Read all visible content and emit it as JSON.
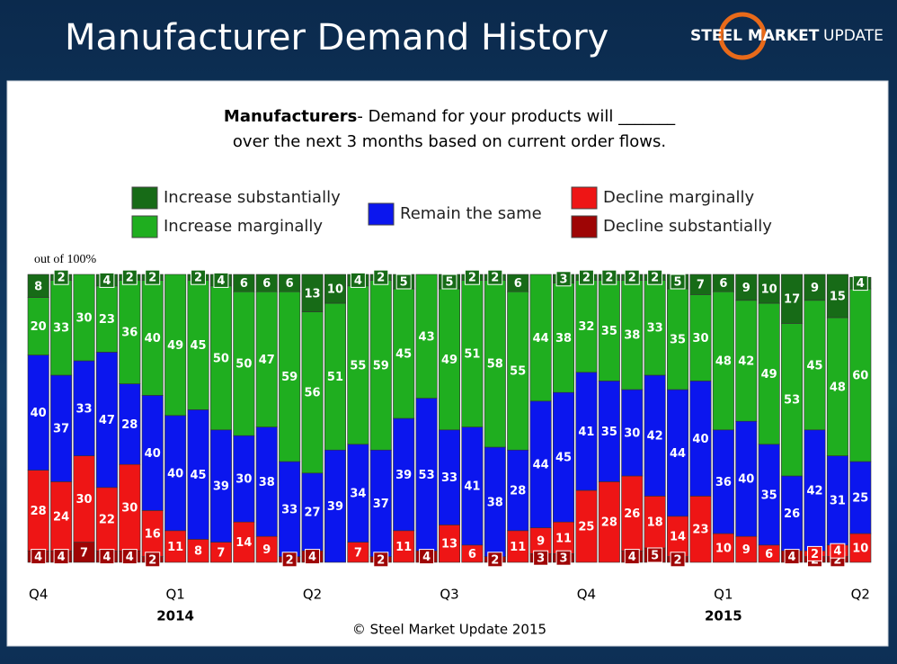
{
  "header": {
    "title": "Manufacturer Demand History",
    "logo_bold": "STEEL MARKET",
    "logo_light": "UPDATE"
  },
  "chart_data": {
    "type": "stacked-bar",
    "title_bold": "Manufacturers",
    "title_rest": "- Demand for your products will _______",
    "title_line2": "over the next 3 months based on current order flows.",
    "y_note": "out of 100%",
    "footer": "© Steel Market Update 2015",
    "ylim": [
      0,
      100
    ],
    "categories": [
      "Q4",
      null,
      null,
      null,
      null,
      null,
      "Q1",
      null,
      null,
      null,
      null,
      null,
      "Q2",
      null,
      null,
      null,
      null,
      null,
      "Q3",
      null,
      null,
      null,
      null,
      null,
      "Q4",
      null,
      null,
      null,
      null,
      null,
      "Q1",
      null,
      null,
      null,
      null,
      null,
      "Q2"
    ],
    "year_categories": [
      null,
      null,
      null,
      null,
      null,
      null,
      "2014",
      null,
      null,
      null,
      null,
      null,
      null,
      null,
      null,
      null,
      null,
      null,
      null,
      null,
      null,
      null,
      null,
      null,
      null,
      null,
      null,
      null,
      null,
      null,
      "2015",
      null,
      null,
      null,
      null,
      null,
      null
    ],
    "series": [
      {
        "name": "Increase substantially",
        "color": "#176b17",
        "values": [
          8,
          2,
          0,
          4,
          2,
          2,
          0,
          2,
          4,
          6,
          6,
          6,
          13,
          10,
          4,
          2,
          5,
          0,
          5,
          2,
          2,
          6,
          0,
          3,
          2,
          2,
          2,
          2,
          5,
          7,
          6,
          9,
          10,
          17,
          9,
          15,
          4
        ]
      },
      {
        "name": "Increase marginally",
        "color": "#1fae1f",
        "values": [
          20,
          33,
          30,
          23,
          36,
          40,
          49,
          45,
          50,
          50,
          47,
          59,
          56,
          51,
          55,
          59,
          45,
          43,
          49,
          51,
          58,
          55,
          44,
          38,
          32,
          35,
          38,
          33,
          35,
          30,
          48,
          42,
          49,
          53,
          45,
          48,
          60
        ]
      },
      {
        "name": "Remain the same",
        "color": "#0b16ee",
        "values": [
          40,
          37,
          33,
          47,
          28,
          40,
          40,
          45,
          39,
          30,
          38,
          33,
          27,
          39,
          34,
          37,
          39,
          53,
          33,
          41,
          38,
          28,
          44,
          45,
          41,
          35,
          30,
          42,
          44,
          40,
          36,
          40,
          35,
          26,
          42,
          31,
          25
        ]
      },
      {
        "name": "Decline marginally",
        "color": "#ee1515",
        "values": [
          28,
          24,
          30,
          22,
          30,
          16,
          11,
          8,
          7,
          14,
          9,
          0,
          0,
          0,
          7,
          0,
          11,
          0,
          13,
          6,
          0,
          11,
          9,
          11,
          25,
          28,
          26,
          18,
          14,
          23,
          10,
          9,
          6,
          0,
          2,
          4,
          10
        ]
      },
      {
        "name": "Decline substantially",
        "color": "#9e0505",
        "values": [
          4,
          4,
          7,
          4,
          4,
          2,
          0,
          0,
          0,
          0,
          0,
          2,
          4,
          0,
          0,
          2,
          0,
          4,
          0,
          0,
          2,
          0,
          3,
          3,
          0,
          0,
          4,
          5,
          2,
          0,
          0,
          0,
          0,
          4,
          2,
          2,
          0
        ]
      }
    ]
  }
}
